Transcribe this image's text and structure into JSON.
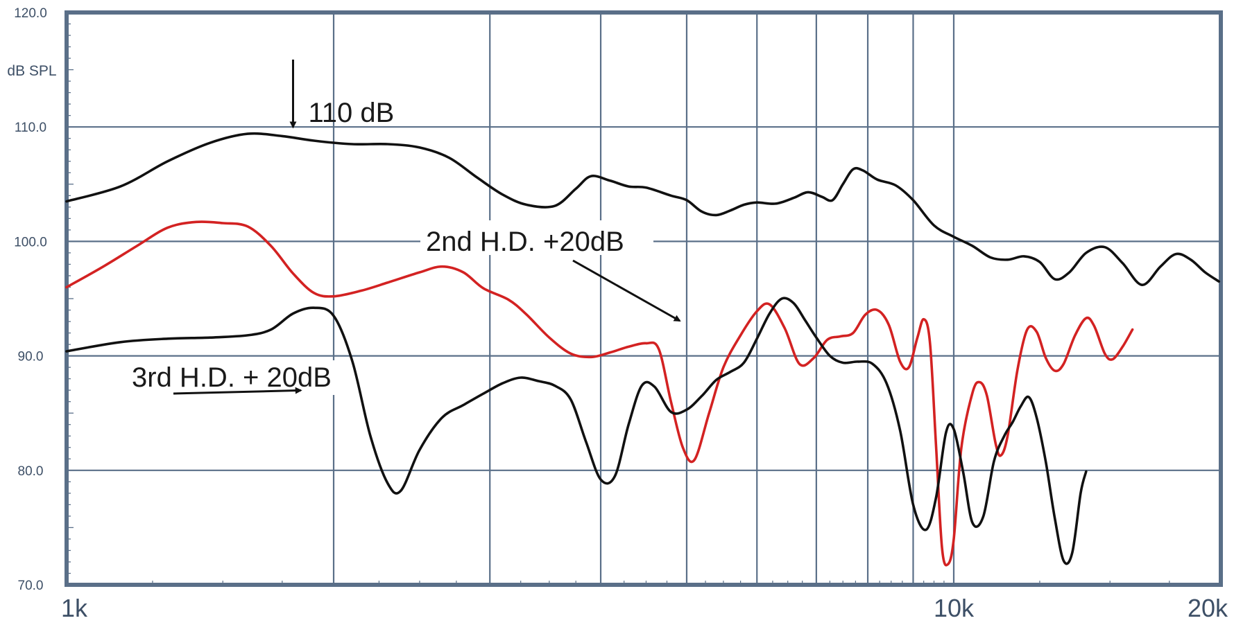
{
  "chart_data": {
    "type": "line",
    "title": "",
    "xlabel": "",
    "ylabel": "dB SPL",
    "x_scale": "log",
    "xlim": [
      1000,
      20000
    ],
    "ylim": [
      70,
      120
    ],
    "grid": true,
    "y_ticks": [
      "120.0",
      "110.0",
      "100.0",
      "90.0",
      "80.0",
      "70.0"
    ],
    "x_tick_labels": [
      {
        "value": 1000,
        "label": "1k"
      },
      {
        "value": 10000,
        "label": "10k"
      },
      {
        "value": 20000,
        "label": "20k"
      }
    ],
    "x_gridlines": [
      1000,
      2000,
      3000,
      4000,
      5000,
      6000,
      7000,
      8000,
      9000,
      10000,
      20000
    ],
    "y_gridlines": [
      70,
      80,
      90,
      100,
      110,
      120
    ],
    "series": [
      {
        "color": "#111111",
        "points": [
          [
            1000,
            103.5
          ],
          [
            1150,
            104.8
          ],
          [
            1300,
            107
          ],
          [
            1450,
            108.6
          ],
          [
            1600,
            109.4
          ],
          [
            1750,
            109.2
          ],
          [
            1900,
            108.8
          ],
          [
            2100,
            108.5
          ],
          [
            2300,
            108.5
          ],
          [
            2500,
            108.2
          ],
          [
            2700,
            107.3
          ],
          [
            2900,
            105.6
          ],
          [
            3100,
            104.1
          ],
          [
            3300,
            103.2
          ],
          [
            3550,
            103.1
          ],
          [
            3750,
            104.6
          ],
          [
            3900,
            105.7
          ],
          [
            4100,
            105.3
          ],
          [
            4300,
            104.8
          ],
          [
            4500,
            104.7
          ],
          [
            4800,
            104
          ],
          [
            5000,
            103.6
          ],
          [
            5200,
            102.6
          ],
          [
            5400,
            102.3
          ],
          [
            5600,
            102.7
          ],
          [
            5800,
            103.2
          ],
          [
            6000,
            103.4
          ],
          [
            6300,
            103.3
          ],
          [
            6600,
            103.8
          ],
          [
            6850,
            104.3
          ],
          [
            7100,
            103.9
          ],
          [
            7300,
            103.6
          ],
          [
            7500,
            105
          ],
          [
            7700,
            106.3
          ],
          [
            7900,
            106.2
          ],
          [
            8200,
            105.4
          ],
          [
            8600,
            104.9
          ],
          [
            9000,
            103.6
          ],
          [
            9500,
            101.4
          ],
          [
            10000,
            100.4
          ],
          [
            10500,
            99.6
          ],
          [
            11000,
            98.6
          ],
          [
            11500,
            98.4
          ],
          [
            12000,
            98.7
          ],
          [
            12500,
            98.2
          ],
          [
            13000,
            96.7
          ],
          [
            13500,
            97.3
          ],
          [
            14100,
            99
          ],
          [
            14800,
            99.5
          ],
          [
            15500,
            98.1
          ],
          [
            16300,
            96.2
          ],
          [
            17100,
            97.8
          ],
          [
            17800,
            98.9
          ],
          [
            18500,
            98.4
          ],
          [
            19200,
            97.3
          ],
          [
            19900,
            96.5
          ]
        ]
      },
      {
        "color": "#d32222",
        "points": [
          [
            1000,
            96
          ],
          [
            1100,
            97.8
          ],
          [
            1200,
            99.6
          ],
          [
            1300,
            101.2
          ],
          [
            1400,
            101.7
          ],
          [
            1500,
            101.6
          ],
          [
            1600,
            101.3
          ],
          [
            1700,
            99.6
          ],
          [
            1800,
            97.2
          ],
          [
            1900,
            95.5
          ],
          [
            2000,
            95.2
          ],
          [
            2150,
            95.7
          ],
          [
            2300,
            96.4
          ],
          [
            2500,
            97.3
          ],
          [
            2650,
            97.8
          ],
          [
            2800,
            97.3
          ],
          [
            2950,
            95.9
          ],
          [
            3150,
            94.9
          ],
          [
            3300,
            93.6
          ],
          [
            3500,
            91.6
          ],
          [
            3700,
            90.2
          ],
          [
            3900,
            89.9
          ],
          [
            4100,
            90.3
          ],
          [
            4300,
            90.8
          ],
          [
            4500,
            91.1
          ],
          [
            4650,
            90.6
          ],
          [
            4800,
            86
          ],
          [
            4950,
            82
          ],
          [
            5100,
            80.9
          ],
          [
            5300,
            85
          ],
          [
            5500,
            89
          ],
          [
            5750,
            91.8
          ],
          [
            6000,
            93.9
          ],
          [
            6200,
            94.5
          ],
          [
            6450,
            92.4
          ],
          [
            6700,
            89.3
          ],
          [
            6950,
            89.8
          ],
          [
            7200,
            91.4
          ],
          [
            7450,
            91.7
          ],
          [
            7700,
            92
          ],
          [
            7950,
            93.6
          ],
          [
            8200,
            94
          ],
          [
            8450,
            92.7
          ],
          [
            8700,
            89.5
          ],
          [
            8900,
            89
          ],
          [
            9100,
            91.6
          ],
          [
            9250,
            93.2
          ],
          [
            9400,
            91.2
          ],
          [
            9550,
            82.2
          ],
          [
            9700,
            73.2
          ],
          [
            9850,
            71.8
          ],
          [
            10000,
            74
          ],
          [
            10200,
            82
          ],
          [
            10500,
            86.8
          ],
          [
            10700,
            87.7
          ],
          [
            10900,
            86.5
          ],
          [
            11150,
            82.3
          ],
          [
            11300,
            81.3
          ],
          [
            11500,
            83
          ],
          [
            11800,
            88.8
          ],
          [
            12100,
            92.3
          ],
          [
            12400,
            92.1
          ],
          [
            12700,
            89.8
          ],
          [
            13000,
            88.7
          ],
          [
            13300,
            89.3
          ],
          [
            13700,
            91.8
          ],
          [
            14100,
            93.3
          ],
          [
            14400,
            92.6
          ],
          [
            14800,
            90.2
          ],
          [
            15100,
            89.7
          ],
          [
            15500,
            90.8
          ],
          [
            15900,
            92.3
          ]
        ]
      },
      {
        "color": "#111111",
        "points": [
          [
            1000,
            90.4
          ],
          [
            1150,
            91.2
          ],
          [
            1300,
            91.5
          ],
          [
            1450,
            91.6
          ],
          [
            1600,
            91.8
          ],
          [
            1700,
            92.3
          ],
          [
            1800,
            93.7
          ],
          [
            1900,
            94.2
          ],
          [
            2000,
            93.5
          ],
          [
            2100,
            89.5
          ],
          [
            2200,
            83
          ],
          [
            2300,
            78.9
          ],
          [
            2380,
            78.2
          ],
          [
            2500,
            81.8
          ],
          [
            2650,
            84.6
          ],
          [
            2800,
            85.7
          ],
          [
            2950,
            86.7
          ],
          [
            3100,
            87.6
          ],
          [
            3250,
            88.1
          ],
          [
            3400,
            87.8
          ],
          [
            3550,
            87.4
          ],
          [
            3700,
            86.2
          ],
          [
            3850,
            82.5
          ],
          [
            4000,
            79.2
          ],
          [
            4150,
            79.5
          ],
          [
            4300,
            84
          ],
          [
            4450,
            87.4
          ],
          [
            4600,
            87.3
          ],
          [
            4800,
            85.1
          ],
          [
            5000,
            85.3
          ],
          [
            5200,
            86.5
          ],
          [
            5400,
            87.9
          ],
          [
            5600,
            88.6
          ],
          [
            5800,
            89.4
          ],
          [
            6000,
            91.5
          ],
          [
            6200,
            93.7
          ],
          [
            6400,
            95
          ],
          [
            6600,
            94.6
          ],
          [
            6800,
            93.1
          ],
          [
            7000,
            91.6
          ],
          [
            7250,
            90
          ],
          [
            7500,
            89.4
          ],
          [
            7800,
            89.5
          ],
          [
            8100,
            89.3
          ],
          [
            8400,
            87.6
          ],
          [
            8700,
            83.5
          ],
          [
            9000,
            77
          ],
          [
            9300,
            74.8
          ],
          [
            9550,
            77.6
          ],
          [
            9800,
            83.3
          ],
          [
            10000,
            83.6
          ],
          [
            10250,
            79.8
          ],
          [
            10500,
            75.4
          ],
          [
            10800,
            76
          ],
          [
            11100,
            80.8
          ],
          [
            11400,
            83
          ],
          [
            11650,
            84.2
          ],
          [
            11900,
            85.6
          ],
          [
            12150,
            86.4
          ],
          [
            12400,
            84.6
          ],
          [
            12700,
            80.7
          ],
          [
            13000,
            75.8
          ],
          [
            13300,
            72.1
          ],
          [
            13600,
            72.8
          ],
          [
            13900,
            78
          ],
          [
            14100,
            79.9
          ]
        ]
      }
    ],
    "annotations": [
      {
        "text": "110 dB",
        "arrow_to": [
          1800,
          109.5
        ]
      },
      {
        "text": "2nd H.D. +20dB",
        "arrow_to": [
          5000,
          92.7
        ]
      },
      {
        "text": "3rd H.D. + 20dB",
        "arrow_to": [
          1850,
          86.5
        ]
      }
    ]
  }
}
